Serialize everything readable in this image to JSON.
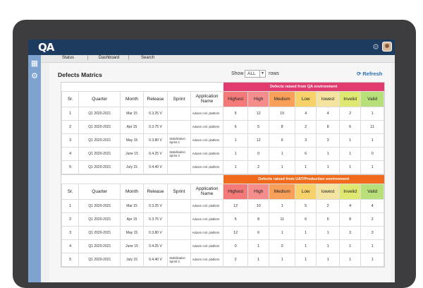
{
  "app": {
    "logo": "QA"
  },
  "nav": {
    "items": [
      "Status",
      "Dashboard",
      "Search"
    ]
  },
  "page": {
    "title": "Defects Matrics",
    "show_label": "Show",
    "show_value": "ALL",
    "rows_label": "rows",
    "refresh_label": "Refresh"
  },
  "colors": {
    "qa_band": "#e03a6e",
    "uat_band": "#f26a1b",
    "highest": "#f47a7a",
    "high": "#f68d8d",
    "medium": "#f8a05a",
    "low": "#f7d26a",
    "lowest": "#f4e4a0",
    "invalid": "#dfe870",
    "valid": "#b7e07a"
  },
  "columns": [
    "Sr.",
    "Quarter",
    "Month",
    "Release",
    "Sprint",
    "Application Name",
    "Highest",
    "High",
    "Medium",
    "Low",
    "lowest",
    "Invelid",
    "Valid"
  ],
  "qa_table": {
    "band_label": "Defects raised from QA environment",
    "rows": [
      {
        "sr": "1",
        "quarter": "Q1 2020-2021",
        "month": "Mar 15",
        "release": "0.3.25 V",
        "sprint": "",
        "app": "Adoorn cml. platform",
        "vals": [
          "5",
          "12",
          "10",
          "4",
          "4",
          "2",
          "1"
        ]
      },
      {
        "sr": "2",
        "quarter": "Q1 2020-2021",
        "month": "Apr 15",
        "release": "0.3.75 V",
        "sprint": "",
        "app": "Adoorn cml. platform",
        "vals": [
          "6",
          "5",
          "8",
          "2",
          "8",
          "6",
          "11"
        ]
      },
      {
        "sr": "3",
        "quarter": "Q1 2020-2021",
        "month": "May 15",
        "release": "0.3.80 V",
        "sprint": "Stabilization Sprint 2",
        "app": "Adoorn cml. platform",
        "vals": [
          "1",
          "12",
          "6",
          "3",
          "3",
          "1",
          "1"
        ]
      },
      {
        "sr": "4",
        "quarter": "Q1 2020-2021",
        "month": "June 15",
        "release": "0.4.25 V",
        "sprint": "Stabilization Sprint 3",
        "app": "Adoorn cml. platform",
        "vals": [
          "1",
          "0",
          "1",
          "6",
          "1",
          "1",
          "0"
        ]
      },
      {
        "sr": "5",
        "quarter": "Q1 2020-2021",
        "month": "July 15",
        "release": "0.4.40 V",
        "sprint": "",
        "app": "Adoorn cml. platform",
        "vals": [
          "1",
          "2",
          "1",
          "1",
          "1",
          "1",
          "1"
        ]
      }
    ]
  },
  "uat_table": {
    "band_label": "Defects raised from UAT/Production environment",
    "rows": [
      {
        "sr": "1",
        "quarter": "Q1 2020-2021",
        "month": "Mar 15",
        "release": "0.3.25 V",
        "sprint": "",
        "app": "Adoorn cml. platform",
        "vals": [
          "12",
          "10",
          "1",
          "5",
          "2",
          "4",
          "4"
        ]
      },
      {
        "sr": "2",
        "quarter": "Q1 2020-2021",
        "month": "Apr 15",
        "release": "0.3.75 V",
        "sprint": "",
        "app": "Adoorn cml. platform",
        "vals": [
          "5",
          "8",
          "11",
          "6",
          "6",
          "8",
          "2"
        ]
      },
      {
        "sr": "3",
        "quarter": "Q1 2020-2021",
        "month": "May 15",
        "release": "0.3.80 V",
        "sprint": "",
        "app": "Adoorn cml. platform",
        "vals": [
          "12",
          "6",
          "1",
          "1",
          "1",
          "3",
          "3"
        ]
      },
      {
        "sr": "4",
        "quarter": "Q1 2020-2021",
        "month": "June 15",
        "release": "0.4.25 V",
        "sprint": "",
        "app": "Adoorn cml. platform",
        "vals": [
          "0",
          "1",
          "0",
          "1",
          "1",
          "1",
          "1"
        ]
      },
      {
        "sr": "5",
        "quarter": "Q1 2020-2021",
        "month": "July 15",
        "release": "0.4.40 V",
        "sprint": "Stabilization Sprint 3",
        "app": "Adoorn cml. platform",
        "vals": [
          "2",
          "1",
          "1",
          "1",
          "1",
          "1",
          "1"
        ]
      }
    ]
  }
}
